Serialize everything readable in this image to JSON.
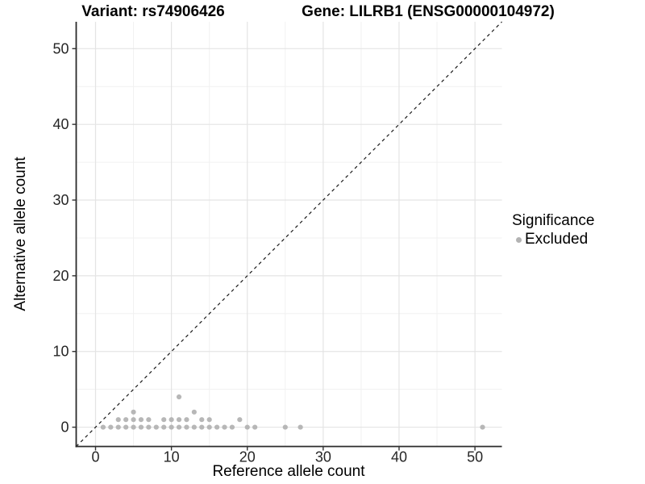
{
  "title": {
    "variant": "Variant: rs74906426",
    "gene": "Gene: LILRB1 (ENSG00000104972)"
  },
  "legend": {
    "title": "Significance",
    "items": [
      {
        "label": "Excluded",
        "color": "#b3b3b3"
      }
    ]
  },
  "colors": {
    "point": "#b3b3b3",
    "grid_major": "#e4e4e4",
    "grid_minor": "#f1f1f1",
    "axis_line": "#2b2b2b",
    "tick_mark": "#333333",
    "tick_label": "#262626",
    "reference_line": "#1a1a1a",
    "background": "#ffffff"
  },
  "chart_data": {
    "type": "scatter",
    "title_left": "Variant: rs74906426",
    "title_right": "Gene: LILRB1 (ENSG00000104972)",
    "xlabel": "Reference allele count",
    "ylabel": "Alternative allele count",
    "xlim": [
      -2.55,
      53.55
    ],
    "ylim": [
      -2.55,
      53.55
    ],
    "x_ticks": [
      0,
      10,
      20,
      30,
      40,
      50
    ],
    "y_ticks": [
      0,
      10,
      20,
      30,
      40,
      50
    ],
    "minor_gridlines": [
      5,
      15,
      25,
      35,
      45
    ],
    "grid": "major+minor",
    "legend_position": "right",
    "reference_line": {
      "type": "identity y=x",
      "style": "dashed"
    },
    "series": [
      {
        "name": "Excluded",
        "color": "#b3b3b3",
        "points": [
          [
            1,
            0
          ],
          [
            2,
            0
          ],
          [
            3,
            0
          ],
          [
            4,
            0
          ],
          [
            5,
            0
          ],
          [
            6,
            0
          ],
          [
            7,
            0
          ],
          [
            8,
            0
          ],
          [
            9,
            0
          ],
          [
            10,
            0
          ],
          [
            11,
            0
          ],
          [
            12,
            0
          ],
          [
            13,
            0
          ],
          [
            14,
            0
          ],
          [
            15,
            0
          ],
          [
            16,
            0
          ],
          [
            17,
            0
          ],
          [
            18,
            0
          ],
          [
            20,
            0
          ],
          [
            21,
            0
          ],
          [
            25,
            0
          ],
          [
            27,
            0
          ],
          [
            51,
            0
          ],
          [
            3,
            1
          ],
          [
            4,
            1
          ],
          [
            5,
            1
          ],
          [
            6,
            1
          ],
          [
            7,
            1
          ],
          [
            9,
            1
          ],
          [
            10,
            1
          ],
          [
            11,
            1
          ],
          [
            12,
            1
          ],
          [
            14,
            1
          ],
          [
            15,
            1
          ],
          [
            19,
            1
          ],
          [
            5,
            2
          ],
          [
            13,
            2
          ],
          [
            11,
            4
          ]
        ]
      }
    ]
  }
}
